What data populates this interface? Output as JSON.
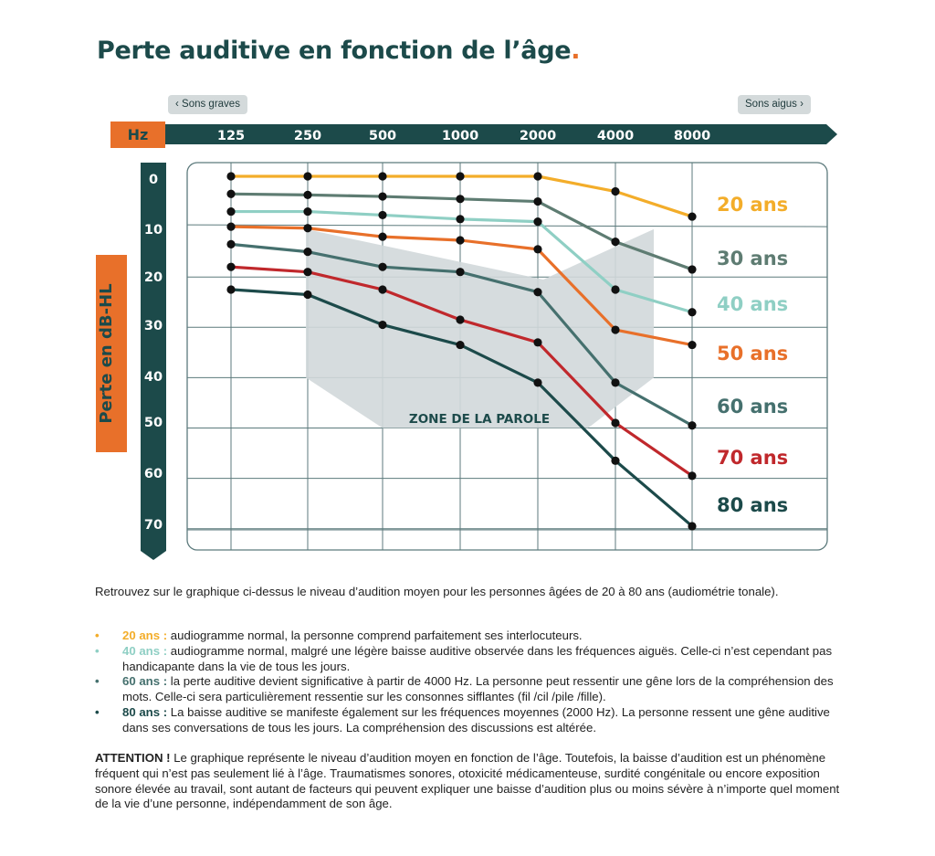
{
  "title": "Perte auditive en fonction de l’âge",
  "title_dot": ".",
  "chips": {
    "low": "‹ Sons graves",
    "high": "Sons aigus ›"
  },
  "colors": {
    "teal_dark": "#1c4a4a",
    "orange": "#e8702a",
    "zone": "#d1d8da",
    "grid": "#5c7a7c"
  },
  "chart_data": {
    "type": "line",
    "x_axis_label": "Hz",
    "y_axis_label": "Perte en dB-HL",
    "categories": [
      "125",
      "250",
      "500",
      "1000",
      "2000",
      "4000",
      "8000"
    ],
    "y_ticks": [
      "0",
      "10",
      "20",
      "30",
      "40",
      "50",
      "60",
      "70"
    ],
    "ylim": [
      0,
      73
    ],
    "y_inverted": true,
    "grid": true,
    "zone_label": "ZONE DE LA PAROLE",
    "zone_polygon": [
      {
        "x": "250",
        "y": 10.5
      },
      {
        "x": "2000",
        "y": 20.5
      },
      {
        "x": "8000",
        "y": 10.5
      },
      {
        "x": "8000",
        "y": 40
      },
      {
        "x": "2000",
        "y": 50
      },
      {
        "x": "500",
        "y": 50
      },
      {
        "x": "250",
        "y": 40
      }
    ],
    "series": [
      {
        "name": "20 ans",
        "color": "#f3ad2a",
        "values": [
          0,
          0,
          0,
          0,
          0,
          3,
          8
        ]
      },
      {
        "name": "30 ans",
        "color": "#5e7c72",
        "values": [
          3.5,
          3.7,
          4,
          4.5,
          5,
          13,
          18.5
        ]
      },
      {
        "name": "40 ans",
        "color": "#8fcfc4",
        "values": [
          7,
          7,
          7.7,
          8.5,
          9,
          22.5,
          27
        ]
      },
      {
        "name": "50 ans",
        "color": "#e8702a",
        "values": [
          10,
          10.3,
          12,
          12.7,
          14.5,
          30.5,
          33.5
        ]
      },
      {
        "name": "60 ans",
        "color": "#45706e",
        "values": [
          13.5,
          15,
          18,
          19,
          23,
          41,
          49.5
        ]
      },
      {
        "name": "70 ans",
        "color": "#c0282c",
        "values": [
          18,
          19,
          22.5,
          28.5,
          33,
          49,
          59.5
        ]
      },
      {
        "name": "80 ans",
        "color": "#1c4a4a",
        "values": [
          22.5,
          23.5,
          29.5,
          33.5,
          41,
          56.5,
          69.5
        ]
      }
    ]
  },
  "intro": "Retrouvez sur le graphique ci-dessus le niveau d’audition moyen pour les personnes âgées de 20 à 80 ans (audiométrie tonale).",
  "notes": [
    {
      "bullet": "•",
      "label": "20 ans :",
      "color": "#f3ad2a",
      "text": "audiogramme normal, la personne comprend parfaitement ses interlocuteurs."
    },
    {
      "bullet": "•",
      "label": "40 ans :",
      "color": "#8fcfc4",
      "text": "audiogramme normal, malgré une légère baisse auditive observée dans les fréquences aiguës. Celle-ci n’est cependant pas handicapante dans la vie de tous les jours."
    },
    {
      "bullet": "•",
      "label": "60 ans :",
      "color": "#45706e",
      "text": "la perte auditive devient significative à partir de 4000 Hz. La personne peut ressentir une gêne lors de la compréhension des mots. Celle-ci sera particulièrement ressentie sur les consonnes sifflantes (fil /cil /pile /fille)."
    },
    {
      "bullet": "•",
      "label": "80 ans :",
      "color": "#1c4a4a",
      "text": "La baisse auditive se manifeste également sur les fréquences moyennes (2000 Hz). La personne ressent une gêne auditive dans ses conversations de tous les jours. La compréhension des discussions est altérée."
    }
  ],
  "attention_label": "ATTENTION !",
  "attention_text": "Le graphique représente le niveau d’audition moyen en fonction de l’âge. Toutefois, la baisse d’audition est un phénomène fréquent qui n’est pas seulement lié à l’âge. Traumatismes sonores, otoxicité médicamenteuse, surdité congénitale ou encore exposition sonore élevée au travail, sont autant de facteurs qui peuvent expliquer une baisse d’audition plus ou moins sévère à n’importe quel moment de la vie d’une personne, indépendamment de son âge."
}
